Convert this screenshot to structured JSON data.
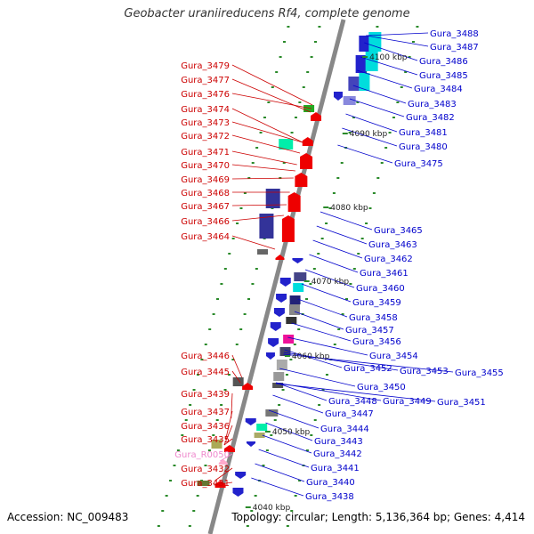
{
  "title": "Geobacter uraniireducens Rf4, complete genome",
  "accession": "Accession: NC_009483",
  "topology": "Topology: circular; Length: 5,136,364 bp; Genes: 4,414",
  "colors": {
    "left_label": "#cc0000",
    "right_label": "#0000cc",
    "rna_label": "#ee88cc",
    "backbone": "#888888"
  },
  "kbp_ticks": [
    "4100 kbp",
    "4090 kbp",
    "4080 kbp",
    "4070 kbp",
    "4060 kbp",
    "4050 kbp",
    "4040 kbp"
  ],
  "left_labels": [
    "Gura_3479",
    "Gura_3477",
    "Gura_3476",
    "Gura_3474",
    "Gura_3473",
    "Gura_3472",
    "Gura_3471",
    "Gura_3470",
    "Gura_3469",
    "Gura_3468",
    "Gura_3467",
    "Gura_3466",
    "Gura_3464",
    "Gura_3446",
    "Gura_3445",
    "Gura_3439",
    "Gura_3437",
    "Gura_3436",
    "Gura_3435",
    "Gura_R0050",
    "Gura_3432",
    "Gura_3431"
  ],
  "right_labels": [
    "Gura_3488",
    "Gura_3487",
    "Gura_3486",
    "Gura_3485",
    "Gura_3484",
    "Gura_3483",
    "Gura_3482",
    "Gura_3481",
    "Gura_3480",
    "Gura_3475",
    "Gura_3465",
    "Gura_3463",
    "Gura_3462",
    "Gura_3461",
    "Gura_3460",
    "Gura_3459",
    "Gura_3458",
    "Gura_3457",
    "Gura_3456",
    "Gura_3454",
    "Gura_3453",
    "Gura_3455",
    "Gura_3452",
    "Gura_3450",
    "Gura_3448",
    "Gura_3449",
    "Gura_3451",
    "Gura_3447",
    "Gura_3444",
    "Gura_3443",
    "Gura_3442",
    "Gura_3441",
    "Gura_3440",
    "Gura_3438"
  ]
}
